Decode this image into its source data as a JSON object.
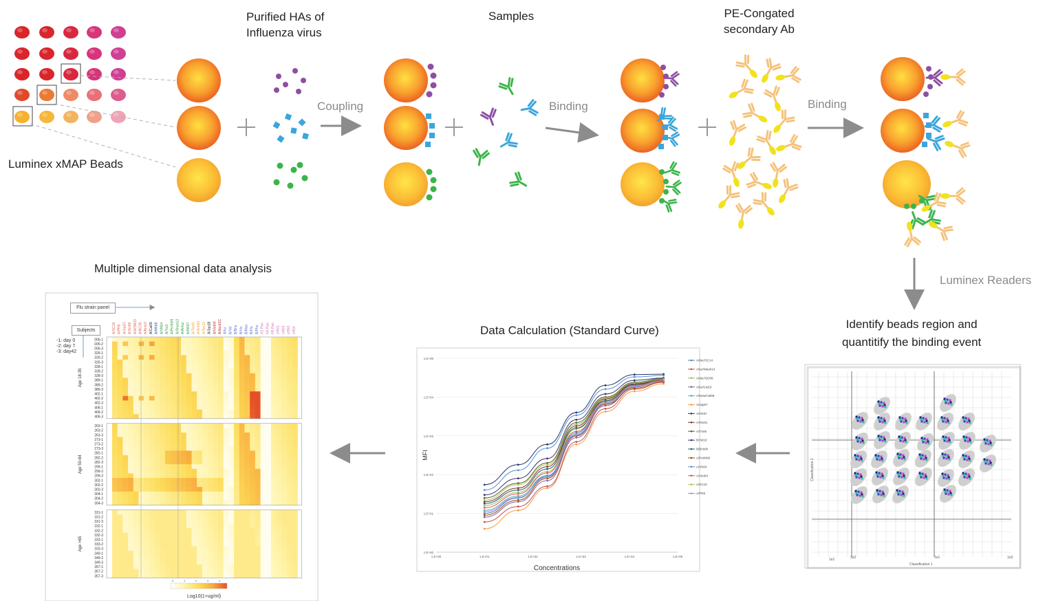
{
  "labels": {
    "beads": "Luminex xMAP Beads",
    "has": "Purified HAs of\nInfluenza virus",
    "samples": "Samples",
    "secondary": "PE-Congated\nsecondary Ab",
    "coupling": "Coupling",
    "binding1": "Binding",
    "binding2": "Binding",
    "readers": "Luminex Readers",
    "identify": "Identify beads region and\nquantitify the binding event",
    "calc": "Data Calculation (Standard Curve)",
    "analysis": "Multiple dimensional data analysis"
  },
  "heatmap": {
    "panel_label": "Flu strain panel",
    "subjects_label": "Subjects",
    "day_legend": [
      "-1: day 0",
      "-2: day 7",
      "-3: day42"
    ],
    "groups": [
      {
        "name": "Age 18-35",
        "rows": [
          "005-1",
          "005-2",
          "005-3",
          "326-1",
          "326-2",
          "326-3",
          "328-1",
          "328-2",
          "328-3",
          "389-1",
          "389-2",
          "389-3",
          "402-1",
          "402-2",
          "402-3",
          "406-1",
          "406-2",
          "406-3"
        ]
      },
      {
        "name": "Age 50-64",
        "rows": [
          "263-1",
          "263-2",
          "263-3",
          "273-1",
          "273-2",
          "273-3",
          "282-1",
          "282-2",
          "282-3",
          "299-1",
          "299-2",
          "299-3",
          "302-1",
          "302-2",
          "302-3",
          "304-1",
          "304-2",
          "304-3"
        ]
      },
      {
        "name": "Age >65",
        "rows": [
          "331-1",
          "331-2",
          "331-3",
          "332-1",
          "332-2",
          "332-3",
          "333-1",
          "333-2",
          "333-3",
          "349-1",
          "349-2",
          "349-3",
          "357-1",
          "357-2",
          "357-3"
        ]
      }
    ],
    "colorbar_ticks": [
      "0",
      "1",
      "2",
      "3",
      "4"
    ],
    "colorbar_label": "Log10(1+ug/ml)"
  },
  "chart_data": [
    {
      "type": "line",
      "title": "",
      "xlabel": "Concentrations",
      "ylabel": "MFI",
      "x_scale": "log",
      "y_scale": "log",
      "xlim": [
        1,
        100000
      ],
      "ylim": [
        1,
        100000
      ],
      "x_ticks": [
        "1.E+00",
        "1.E+01",
        "1.E+02",
        "1.E+03",
        "1.E+04",
        "1.E+05"
      ],
      "y_ticks": [
        "1.E+00",
        "1.E+01",
        "1.E+02",
        "1.E+03",
        "1.E+04",
        "1.E+05"
      ],
      "x": [
        10,
        50,
        200,
        800,
        3200,
        12800,
        51200
      ],
      "series": [
        {
          "name": "A/duc/SC14",
          "color": "#4a7fc1",
          "values": [
            10,
            25,
            90,
            1200,
            8000,
            22000,
            30000
          ]
        },
        {
          "name": "A/tur/Wash14",
          "color": "#c0504d",
          "values": [
            6,
            15,
            50,
            700,
            5000,
            16000,
            24000
          ]
        },
        {
          "name": "A/duc/GD08",
          "color": "#9bbb59",
          "values": [
            16,
            35,
            120,
            1500,
            8500,
            21000,
            26000
          ]
        },
        {
          "name": "A/tur/Cal15",
          "color": "#8064a2",
          "values": [
            8,
            20,
            70,
            900,
            6000,
            18000,
            28000
          ]
        },
        {
          "name": "A/New/Cal99",
          "color": "#4bacc6",
          "values": [
            12,
            28,
            95,
            1100,
            7000,
            19000,
            27000
          ]
        },
        {
          "name": "A/Jap57",
          "color": "#f79646",
          "values": [
            4,
            12,
            45,
            600,
            4200,
            14000,
            22000
          ]
        },
        {
          "name": "A/HK97",
          "color": "#1f3864",
          "values": [
            55,
            180,
            600,
            4000,
            20000,
            38000,
            39000
          ]
        },
        {
          "name": "A/Tex91",
          "color": "#7f2f2f",
          "values": [
            20,
            45,
            160,
            1800,
            9000,
            22000,
            28000
          ]
        },
        {
          "name": "A/TX06",
          "color": "#4f6228",
          "values": [
            25,
            60,
            200,
            2200,
            10000,
            24000,
            30000
          ]
        },
        {
          "name": "B/Yel10",
          "color": "#3f2f6f",
          "values": [
            30,
            80,
            260,
            2600,
            12000,
            27000,
            31000
          ]
        },
        {
          "name": "B/Bris08",
          "color": "#215968",
          "values": [
            18,
            40,
            140,
            1600,
            8000,
            21000,
            28000
          ]
        },
        {
          "name": "A/Perth09",
          "color": "#984807",
          "values": [
            9,
            22,
            80,
            1000,
            6500,
            17000,
            25000
          ]
        },
        {
          "name": "A/VN04",
          "color": "#558ed5",
          "values": [
            40,
            130,
            480,
            3400,
            16000,
            33000,
            36000
          ]
        },
        {
          "name": "A/Viet04",
          "color": "#d9534f",
          "values": [
            14,
            32,
            110,
            1300,
            7500,
            20000,
            27000
          ]
        },
        {
          "name": "A/SC18",
          "color": "#a6c45c",
          "values": [
            22,
            55,
            180,
            2000,
            9500,
            23000,
            29000
          ]
        },
        {
          "name": "A/PR8",
          "color": "#a78cc9",
          "values": [
            11,
            26,
            85,
            1050,
            6800,
            18500,
            26000
          ]
        }
      ]
    }
  ]
}
